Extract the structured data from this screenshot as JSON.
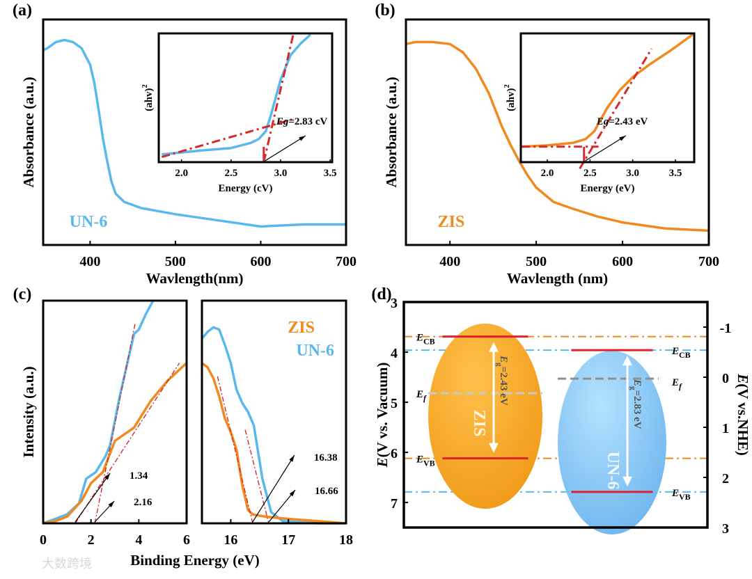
{
  "colors": {
    "un6": "#5bb8ec",
    "zis": "#f18a1e",
    "fit": "#d8282a",
    "gray": "#a0a0a0"
  },
  "watermark": "大数跨境",
  "chart_data": [
    {
      "id": "a",
      "panel_label": "(a)",
      "type": "line",
      "xlabel": "Wavlength(nm)",
      "ylabel": "Absorbance (a.u.)",
      "xlim": [
        345,
        700
      ],
      "ylim": [
        0,
        1.1
      ],
      "xticks": [
        400,
        500,
        600,
        700
      ],
      "legend": "UN-6",
      "legend_position": "bottom-left",
      "series": [
        {
          "name": "UN-6",
          "color": "un6",
          "x": [
            345,
            350,
            360,
            370,
            380,
            390,
            400,
            405,
            410,
            415,
            420,
            425,
            430,
            440,
            460,
            500,
            550,
            600,
            650,
            700
          ],
          "y": [
            0.95,
            0.96,
            0.99,
            1.0,
            0.99,
            0.96,
            0.88,
            0.79,
            0.66,
            0.52,
            0.41,
            0.31,
            0.25,
            0.21,
            0.18,
            0.15,
            0.12,
            0.09,
            0.1,
            0.1
          ]
        }
      ],
      "inset": {
        "xlabel": "Energy (cV)",
        "ylabel": "(ahv)",
        "ylabel_sup": "2",
        "xlim": [
          1.77,
          3.52
        ],
        "ylim": [
          0,
          1
        ],
        "xticks": [
          "2.0",
          "2.5",
          "3.0",
          "3.5"
        ],
        "curve": {
          "x": [
            1.8,
            2.2,
            2.5,
            2.7,
            2.78,
            2.85,
            2.9,
            2.95,
            3.0,
            3.1,
            3.2,
            3.3
          ],
          "y": [
            0.06,
            0.09,
            0.11,
            0.15,
            0.18,
            0.24,
            0.36,
            0.5,
            0.64,
            0.83,
            0.92,
            0.99
          ]
        },
        "fits": [
          [
            [
              1.8,
              0.04
            ],
            [
              3.15,
              0.34
            ]
          ],
          [
            [
              2.83,
              0
            ],
            [
              3.13,
              1.0
            ]
          ]
        ],
        "eg_value": 2.83,
        "annotation": "=2.83 cV",
        "annotation_italic": "Eg"
      }
    },
    {
      "id": "b",
      "panel_label": "(b)",
      "type": "line",
      "xlabel": "Wavlength (nm)",
      "ylabel": "Absorbance (a.u.)",
      "xlim": [
        349,
        700
      ],
      "ylim": [
        0,
        1.1
      ],
      "xticks": [
        400,
        500,
        600,
        700
      ],
      "legend": "ZIS",
      "legend_position": "bottom-left",
      "series": [
        {
          "name": "ZIS",
          "color": "zis",
          "x": [
            349,
            360,
            380,
            400,
            415,
            430,
            445,
            460,
            470,
            480,
            490,
            500,
            520,
            540,
            570,
            600,
            650,
            700
          ],
          "y": [
            0.98,
            0.99,
            0.99,
            0.98,
            0.94,
            0.86,
            0.74,
            0.58,
            0.49,
            0.41,
            0.34,
            0.28,
            0.21,
            0.18,
            0.14,
            0.11,
            0.08,
            0.07
          ]
        }
      ],
      "inset": {
        "xlabel": "Energy (eV)",
        "ylabel": "(ahv)",
        "ylabel_sup": "2",
        "xlim": [
          1.69,
          3.72
        ],
        "ylim": [
          0,
          1
        ],
        "xticks": [
          "2.0",
          "2.5",
          "3.0",
          "3.5"
        ],
        "curve": {
          "x": [
            1.7,
            2.0,
            2.3,
            2.45,
            2.55,
            2.7,
            2.85,
            3.0,
            3.2,
            3.45,
            3.7
          ],
          "y": [
            0.12,
            0.13,
            0.15,
            0.18,
            0.24,
            0.42,
            0.56,
            0.66,
            0.76,
            0.87,
            0.99
          ]
        },
        "fits": [
          [
            [
              1.7,
              0.12
            ],
            [
              2.6,
              0.12
            ]
          ],
          [
            [
              2.38,
              -0.05
            ],
            [
              3.22,
              0.88
            ]
          ]
        ],
        "eg_value": 2.43,
        "annotation": "=2.43 eV",
        "annotation_italic": "Eg"
      }
    },
    {
      "id": "c",
      "panel_label": "(c)",
      "type": "line",
      "xlabel": "Binding Energy (eV)",
      "ylabel": "Intensity (a.u.)",
      "legend": [
        "ZIS",
        "UN-6"
      ],
      "legend_position": "top-right",
      "left": {
        "xlim": [
          0,
          6
        ],
        "xticks": [
          0,
          2,
          4,
          6
        ],
        "ylim": [
          0,
          1
        ],
        "series": [
          {
            "name": "UN-6",
            "color": "un6",
            "x": [
              0,
              0.5,
              1,
              1.5,
              1.8,
              2.2,
              2.6,
              2.8,
              3.2,
              3.8,
              4.0,
              4.3,
              4.6
            ],
            "y": [
              0,
              0.02,
              0.04,
              0.09,
              0.2,
              0.23,
              0.3,
              0.35,
              0.57,
              0.85,
              0.87,
              0.94,
              1.0
            ]
          },
          {
            "name": "ZIS",
            "color": "zis",
            "x": [
              0,
              0.5,
              1,
              1.6,
              2.0,
              2.5,
              3.0,
              3.8,
              4.5,
              5.2,
              6.0
            ],
            "y": [
              0,
              0.01,
              0.03,
              0.1,
              0.18,
              0.23,
              0.37,
              0.43,
              0.55,
              0.64,
              0.72
            ]
          }
        ],
        "fits": [
          [
            [
              1.34,
              0
            ],
            [
              5.7,
              0.72
            ]
          ],
          [
            [
              2.16,
              0
            ],
            [
              3.85,
              0.9
            ]
          ]
        ],
        "annotations": [
          {
            "text": "1.34",
            "x": 1.34
          },
          {
            "text": "2.16",
            "x": 2.16
          }
        ]
      },
      "right": {
        "xlim": [
          15.5,
          18
        ],
        "xticks": [
          16,
          17,
          18
        ],
        "ylim": [
          0,
          1
        ],
        "series": [
          {
            "name": "UN-6",
            "color": "un6",
            "x": [
              15.5,
              15.6,
              15.7,
              15.8,
              15.9,
              16.0,
              16.1,
              16.2,
              16.3,
              16.4,
              16.55,
              16.7,
              16.9,
              17.5,
              18
            ],
            "y": [
              0.83,
              0.86,
              0.88,
              0.87,
              0.8,
              0.72,
              0.6,
              0.54,
              0.5,
              0.44,
              0.2,
              0.05,
              0.01,
              0.0,
              0.0
            ],
            "width": 4
          },
          {
            "name": "ZIS",
            "color": "zis",
            "x": [
              15.5,
              15.6,
              15.7,
              15.8,
              15.9,
              16.0,
              16.1,
              16.2,
              16.3,
              16.38,
              16.6,
              17.0,
              17.5,
              18
            ],
            "y": [
              0.72,
              0.7,
              0.65,
              0.57,
              0.47,
              0.41,
              0.33,
              0.17,
              0.06,
              0.04,
              0.03,
              0.02,
              0.01,
              0.0
            ]
          }
        ],
        "fits": [
          [
            [
              15.77,
              0.66
            ],
            [
              16.38,
              0
            ]
          ],
          [
            [
              16.25,
              0.42
            ],
            [
              16.66,
              0
            ]
          ]
        ],
        "annotations": [
          {
            "text": "16.38",
            "x": 16.38
          },
          {
            "text": "16.66",
            "x": 16.66
          }
        ]
      }
    },
    {
      "id": "d",
      "panel_label": "(d)",
      "type": "diagram",
      "ylabel_left": "(V vs. Vacuum)",
      "ylabel_right": "(V vs.NHE)",
      "ylabel_italic": "E",
      "ylim_vacuum": [
        3,
        7.5
      ],
      "yticks_left": [
        3,
        4,
        5,
        6,
        7
      ],
      "yticks_right": [
        -1,
        0,
        1,
        2,
        3
      ],
      "nhe_offset": 4.5,
      "materials": [
        {
          "name": "ZIS",
          "color": "zis",
          "ecb": 3.69,
          "evb": 6.12,
          "ef": 4.82,
          "eg_label": "=2.43 eV"
        },
        {
          "name": "UN-6",
          "color": "un6",
          "ecb": 3.96,
          "evb": 6.79,
          "ef": 4.53,
          "eg_label": "=2.83 eV"
        }
      ],
      "level_labels": {
        "cb": "CB",
        "vb": "VB",
        "f": "f",
        "e": "E",
        "g": "g"
      }
    }
  ]
}
